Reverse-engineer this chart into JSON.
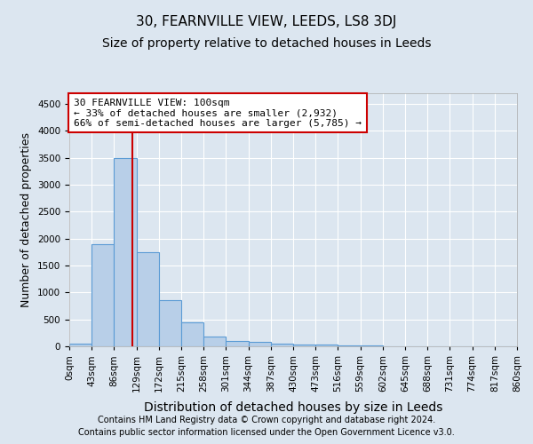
{
  "title": "30, FEARNVILLE VIEW, LEEDS, LS8 3DJ",
  "subtitle": "Size of property relative to detached houses in Leeds",
  "xlabel": "Distribution of detached houses by size in Leeds",
  "ylabel": "Number of detached properties",
  "bin_edges": [
    "0sqm",
    "43sqm",
    "86sqm",
    "129sqm",
    "172sqm",
    "215sqm",
    "258sqm",
    "301sqm",
    "344sqm",
    "387sqm",
    "430sqm",
    "473sqm",
    "516sqm",
    "559sqm",
    "602sqm",
    "645sqm",
    "688sqm",
    "731sqm",
    "774sqm",
    "817sqm",
    "860sqm"
  ],
  "bar_heights": [
    50,
    1900,
    3500,
    1750,
    850,
    450,
    175,
    100,
    75,
    50,
    30,
    25,
    15,
    10,
    5,
    3,
    2,
    1,
    1,
    0
  ],
  "bar_color": "#b8cfe8",
  "bar_edge_color": "#5b9bd5",
  "vline_position": 2.33,
  "vline_color": "#cc0000",
  "ylim": [
    0,
    4700
  ],
  "yticks": [
    0,
    500,
    1000,
    1500,
    2000,
    2500,
    3000,
    3500,
    4000,
    4500
  ],
  "annotation_text": "30 FEARNVILLE VIEW: 100sqm\n← 33% of detached houses are smaller (2,932)\n66% of semi-detached houses are larger (5,785) →",
  "annotation_box_facecolor": "#ffffff",
  "annotation_box_edgecolor": "#cc0000",
  "footer_line1": "Contains HM Land Registry data © Crown copyright and database right 2024.",
  "footer_line2": "Contains public sector information licensed under the Open Government Licence v3.0.",
  "background_color": "#dce6f0",
  "title_fontsize": 11,
  "subtitle_fontsize": 10,
  "ylabel_fontsize": 9,
  "xlabel_fontsize": 10,
  "tick_fontsize": 7.5,
  "annotation_fontsize": 8,
  "footer_fontsize": 7
}
